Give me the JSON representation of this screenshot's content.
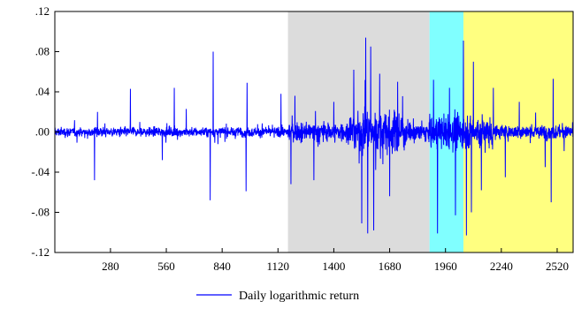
{
  "chart_data": {
    "type": "line",
    "title": "",
    "xlabel": "",
    "ylabel": "",
    "xlim": [
      1,
      2600
    ],
    "ylim": [
      -0.12,
      0.12
    ],
    "y_ticks": [
      {
        "value": 0.12,
        "label": ".12"
      },
      {
        "value": 0.08,
        "label": ".08"
      },
      {
        "value": 0.04,
        "label": ".04"
      },
      {
        "value": 0.0,
        "label": ".00"
      },
      {
        "value": -0.04,
        "label": "-.04"
      },
      {
        "value": -0.08,
        "label": "-.08"
      },
      {
        "value": -0.12,
        "label": "-.12"
      }
    ],
    "x_ticks": [
      {
        "value": 280,
        "label": "280"
      },
      {
        "value": 560,
        "label": "560"
      },
      {
        "value": 840,
        "label": "840"
      },
      {
        "value": 1120,
        "label": "1120"
      },
      {
        "value": 1400,
        "label": "1400"
      },
      {
        "value": 1680,
        "label": "1680"
      },
      {
        "value": 1960,
        "label": "1960"
      },
      {
        "value": 2240,
        "label": "2240"
      },
      {
        "value": 2520,
        "label": "2520"
      }
    ],
    "shaded_regions": [
      {
        "x_start": 1170,
        "x_end": 1880,
        "color": "#dcdcdc"
      },
      {
        "x_start": 1880,
        "x_end": 2050,
        "color": "#80ffff"
      },
      {
        "x_start": 2050,
        "x_end": 2600,
        "color": "#ffff80"
      }
    ],
    "series": [
      {
        "name": "Daily logarithmic return",
        "color": "#0000ff",
        "regimes": [
          {
            "x_start": 1,
            "x_end": 1170,
            "volatility": 0.006
          },
          {
            "x_start": 1170,
            "x_end": 1480,
            "volatility": 0.012
          },
          {
            "x_start": 1480,
            "x_end": 1760,
            "volatility": 0.026
          },
          {
            "x_start": 1760,
            "x_end": 1880,
            "volatility": 0.013
          },
          {
            "x_start": 1880,
            "x_end": 2050,
            "volatility": 0.02
          },
          {
            "x_start": 2050,
            "x_end": 2200,
            "volatility": 0.022
          },
          {
            "x_start": 2200,
            "x_end": 2600,
            "volatility": 0.009
          }
        ],
        "spikes": [
          {
            "x": 200,
            "y": -0.048
          },
          {
            "x": 215,
            "y": 0.02
          },
          {
            "x": 380,
            "y": 0.043
          },
          {
            "x": 540,
            "y": -0.028
          },
          {
            "x": 600,
            "y": 0.044
          },
          {
            "x": 660,
            "y": 0.023
          },
          {
            "x": 780,
            "y": -0.068
          },
          {
            "x": 795,
            "y": 0.08
          },
          {
            "x": 960,
            "y": -0.059
          },
          {
            "x": 965,
            "y": 0.049
          },
          {
            "x": 1135,
            "y": 0.038
          },
          {
            "x": 1185,
            "y": -0.052
          },
          {
            "x": 1205,
            "y": 0.036
          },
          {
            "x": 1300,
            "y": -0.048
          },
          {
            "x": 1400,
            "y": 0.03
          },
          {
            "x": 1500,
            "y": 0.062
          },
          {
            "x": 1540,
            "y": -0.091
          },
          {
            "x": 1560,
            "y": 0.094
          },
          {
            "x": 1570,
            "y": -0.101
          },
          {
            "x": 1585,
            "y": 0.085
          },
          {
            "x": 1600,
            "y": -0.098
          },
          {
            "x": 1630,
            "y": 0.058
          },
          {
            "x": 1680,
            "y": -0.064
          },
          {
            "x": 1720,
            "y": 0.05
          },
          {
            "x": 1900,
            "y": 0.052
          },
          {
            "x": 1920,
            "y": -0.101
          },
          {
            "x": 1980,
            "y": 0.044
          },
          {
            "x": 2010,
            "y": -0.083
          },
          {
            "x": 2050,
            "y": 0.091
          },
          {
            "x": 2065,
            "y": -0.103
          },
          {
            "x": 2090,
            "y": -0.08
          },
          {
            "x": 2100,
            "y": 0.07
          },
          {
            "x": 2140,
            "y": -0.058
          },
          {
            "x": 2200,
            "y": 0.044
          },
          {
            "x": 2260,
            "y": -0.045
          },
          {
            "x": 2330,
            "y": 0.03
          },
          {
            "x": 2460,
            "y": -0.035
          },
          {
            "x": 2490,
            "y": -0.07
          },
          {
            "x": 2500,
            "y": 0.053
          }
        ]
      }
    ],
    "legend": {
      "position": "bottom-center",
      "label": "Daily logarithmic return"
    }
  }
}
